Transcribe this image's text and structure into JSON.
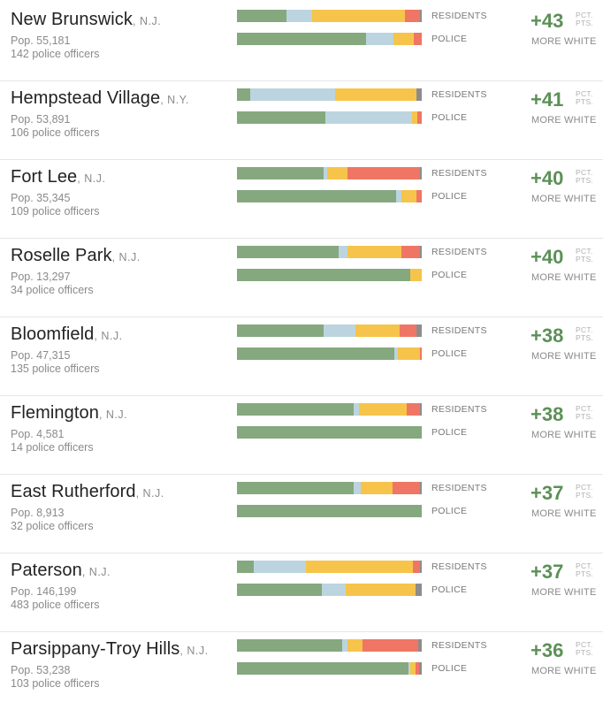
{
  "colors": {
    "white": "#85a87f",
    "hispanic": "#bcd4df",
    "black": "#f6c44a",
    "asian": "#ef7664",
    "other": "#8c8c8c"
  },
  "labels": {
    "residents": "RESIDENTS",
    "police": "POLICE",
    "unit_line1": "PCT.",
    "unit_line2": "PTS.",
    "caption": "MORE WHITE"
  },
  "chart_data": {
    "type": "bar",
    "stacked": true,
    "orientation": "horizontal",
    "value_unit": "percent of total",
    "segment_order": [
      "white",
      "hispanic",
      "black",
      "asian",
      "other"
    ],
    "rows": [
      {
        "city": "New Brunswick",
        "state": ", N.J.",
        "population": "Pop. 55,181",
        "officers": "142 police officers",
        "difference": "+43",
        "residents": [
          27,
          14,
          50,
          8,
          1
        ],
        "police": [
          70,
          15,
          11,
          4,
          0
        ]
      },
      {
        "city": "Hempstead Village",
        "state": ", N.Y.",
        "population": "Pop. 53,891",
        "officers": "106 police officers",
        "difference": "+41",
        "residents": [
          7,
          46,
          44,
          0,
          3
        ],
        "police": [
          48,
          47,
          3,
          2,
          0
        ]
      },
      {
        "city": "Fort Lee",
        "state": ", N.J.",
        "population": "Pop. 35,345",
        "officers": "109 police officers",
        "difference": "+40",
        "residents": [
          47,
          2,
          11,
          39,
          1
        ],
        "police": [
          86,
          3,
          8,
          3,
          0
        ]
      },
      {
        "city": "Roselle Park",
        "state": ", N.J.",
        "population": "Pop. 13,297",
        "officers": "34 police officers",
        "difference": "+40",
        "residents": [
          55,
          5,
          29,
          10,
          1
        ],
        "police": [
          94,
          0,
          6,
          0,
          0
        ]
      },
      {
        "city": "Bloomfield",
        "state": ", N.J.",
        "population": "Pop. 47,315",
        "officers": "135 police officers",
        "difference": "+38",
        "residents": [
          47,
          17,
          24,
          9,
          3
        ],
        "police": [
          85,
          2,
          12,
          1,
          0
        ]
      },
      {
        "city": "Flemington",
        "state": ", N.J.",
        "population": "Pop. 4,581",
        "officers": "14 police officers",
        "difference": "+38",
        "residents": [
          63,
          3,
          26,
          7,
          1
        ],
        "police": [
          100,
          0,
          0,
          0,
          0
        ]
      },
      {
        "city": "East Rutherford",
        "state": ", N.J.",
        "population": "Pop. 8,913",
        "officers": "32 police officers",
        "difference": "+37",
        "residents": [
          63,
          4,
          17,
          15,
          1
        ],
        "police": [
          100,
          0,
          0,
          0,
          0
        ]
      },
      {
        "city": "Paterson",
        "state": ", N.J.",
        "population": "Pop. 146,199",
        "officers": "483 police officers",
        "difference": "+37",
        "residents": [
          9,
          28,
          58,
          4,
          1
        ],
        "police": [
          46,
          13,
          38,
          0,
          3
        ]
      },
      {
        "city": "Parsippany-Troy Hills",
        "state": ", N.J.",
        "population": "Pop. 53,238",
        "officers": "103 police officers",
        "difference": "+36",
        "residents": [
          57,
          3,
          8,
          30,
          2
        ],
        "police": [
          93,
          1,
          3,
          2,
          1
        ]
      }
    ]
  }
}
